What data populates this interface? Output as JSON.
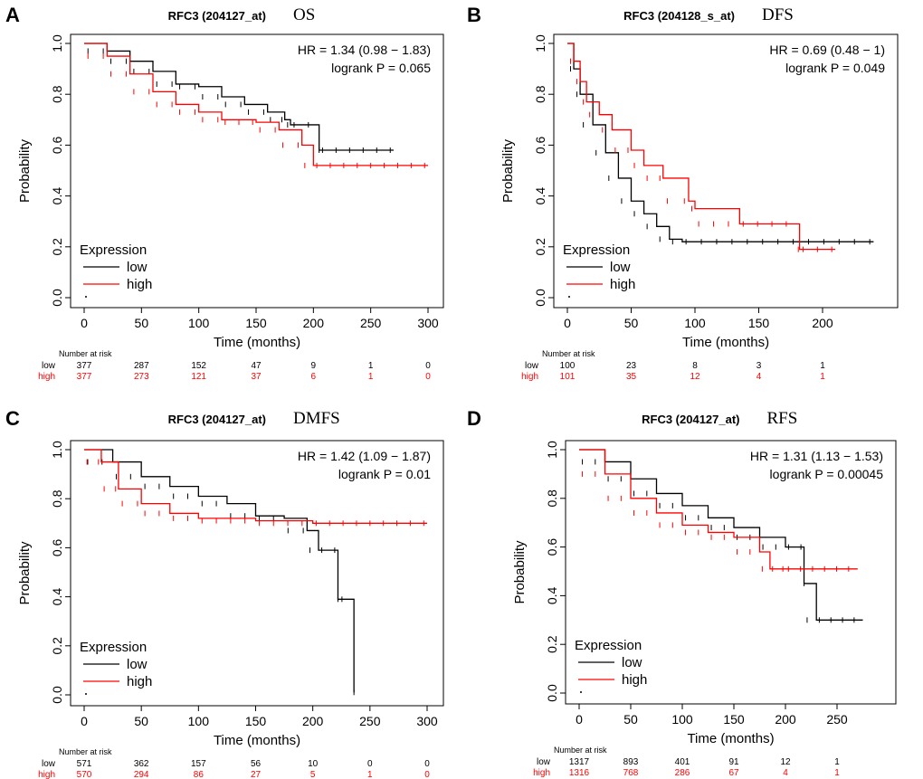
{
  "chart_data": [
    {
      "type": "line",
      "panel": "A",
      "gene": "RFC3 (204127_at)",
      "endpoint": "OS",
      "hr": "HR = 1.34 (0.98 − 1.83)",
      "p": "logrank P = 0.065",
      "xlabel": "Time (months)",
      "ylabel": "Probability",
      "xlim": [
        0,
        300
      ],
      "xticks": [
        0,
        50,
        100,
        150,
        200,
        250,
        300
      ],
      "ylim": [
        0,
        1
      ],
      "yticks": [
        "0.0",
        "0.2",
        "0.4",
        "0.6",
        "0.8",
        "1.0"
      ],
      "legend_title": "Expression",
      "legend_placement": "bottom-left",
      "series": [
        {
          "name": "low",
          "color": "#000000",
          "points": [
            [
              0,
              1
            ],
            [
              20,
              0.97
            ],
            [
              40,
              0.93
            ],
            [
              60,
              0.89
            ],
            [
              80,
              0.84
            ],
            [
              100,
              0.83
            ],
            [
              120,
              0.79
            ],
            [
              140,
              0.76
            ],
            [
              160,
              0.73
            ],
            [
              175,
              0.7
            ],
            [
              180,
              0.68
            ],
            [
              205,
              0.68
            ],
            [
              205,
              0.58
            ],
            [
              270,
              0.58
            ]
          ]
        },
        {
          "name": "high",
          "color": "#ff0000",
          "points": [
            [
              0,
              1
            ],
            [
              20,
              0.95
            ],
            [
              40,
              0.88
            ],
            [
              60,
              0.81
            ],
            [
              80,
              0.76
            ],
            [
              100,
              0.73
            ],
            [
              120,
              0.7
            ],
            [
              150,
              0.69
            ],
            [
              170,
              0.66
            ],
            [
              190,
              0.6
            ],
            [
              200,
              0.52
            ],
            [
              300,
              0.52
            ]
          ]
        }
      ],
      "risk_title": "Number at risk",
      "risk": {
        "low": [
          "377",
          "287",
          "152",
          "47",
          "9",
          "1",
          "0"
        ],
        "high": [
          "377",
          "273",
          "121",
          "37",
          "6",
          "1",
          "0"
        ]
      }
    },
    {
      "type": "line",
      "panel": "B",
      "gene": "RFC3 (204128_s_at)",
      "endpoint": "DFS",
      "hr": "HR = 0.69 (0.48 − 1)",
      "p": "logrank P = 0.049",
      "xlabel": "Time (months)",
      "ylabel": "Probability",
      "xlim": [
        0,
        250
      ],
      "xticks": [
        0,
        50,
        100,
        150,
        200
      ],
      "ylim": [
        0,
        1
      ],
      "yticks": [
        "0.0",
        "0.2",
        "0.4",
        "0.6",
        "0.8",
        "1.0"
      ],
      "legend_title": "Expression",
      "legend_placement": "bottom-left",
      "series": [
        {
          "name": "low",
          "color": "#000000",
          "points": [
            [
              0,
              1
            ],
            [
              5,
              0.9
            ],
            [
              10,
              0.8
            ],
            [
              20,
              0.68
            ],
            [
              30,
              0.57
            ],
            [
              40,
              0.47
            ],
            [
              50,
              0.38
            ],
            [
              60,
              0.33
            ],
            [
              70,
              0.28
            ],
            [
              80,
              0.23
            ],
            [
              90,
              0.22
            ],
            [
              240,
              0.22
            ]
          ]
        },
        {
          "name": "high",
          "color": "#ff0000",
          "points": [
            [
              0,
              1
            ],
            [
              5,
              0.93
            ],
            [
              10,
              0.85
            ],
            [
              15,
              0.77
            ],
            [
              25,
              0.72
            ],
            [
              35,
              0.66
            ],
            [
              50,
              0.58
            ],
            [
              60,
              0.52
            ],
            [
              75,
              0.47
            ],
            [
              95,
              0.38
            ],
            [
              100,
              0.35
            ],
            [
              135,
              0.29
            ],
            [
              180,
              0.29
            ],
            [
              182,
              0.19
            ],
            [
              210,
              0.19
            ]
          ]
        }
      ],
      "risk_title": "Number at risk",
      "risk": {
        "low": [
          "100",
          "23",
          "8",
          "3",
          "1"
        ],
        "high": [
          "101",
          "35",
          "12",
          "4",
          "1"
        ]
      }
    },
    {
      "type": "line",
      "panel": "C",
      "gene": "RFC3 (204127_at)",
      "endpoint": "DMFS",
      "hr": "HR = 1.42 (1.09 − 1.87)",
      "p": "logrank P = 0.01",
      "xlabel": "Time (months)",
      "ylabel": "Probability",
      "xlim": [
        0,
        300
      ],
      "xticks": [
        0,
        50,
        100,
        150,
        200,
        250,
        300
      ],
      "ylim": [
        0,
        1
      ],
      "yticks": [
        "0.0",
        "0.2",
        "0.4",
        "0.6",
        "0.8",
        "1.0"
      ],
      "legend_title": "Expression",
      "legend_placement": "bottom-left",
      "series": [
        {
          "name": "low",
          "color": "#000000",
          "points": [
            [
              0,
              1
            ],
            [
              25,
              0.95
            ],
            [
              50,
              0.89
            ],
            [
              75,
              0.85
            ],
            [
              100,
              0.81
            ],
            [
              125,
              0.78
            ],
            [
              150,
              0.73
            ],
            [
              175,
              0.72
            ],
            [
              195,
              0.67
            ],
            [
              205,
              0.59
            ],
            [
              222,
              0.59
            ],
            [
              222,
              0.39
            ],
            [
              236,
              0.39
            ],
            [
              236,
              0.01
            ]
          ]
        },
        {
          "name": "high",
          "color": "#ff0000",
          "points": [
            [
              0,
              1
            ],
            [
              15,
              0.95
            ],
            [
              30,
              0.84
            ],
            [
              50,
              0.78
            ],
            [
              75,
              0.74
            ],
            [
              100,
              0.72
            ],
            [
              150,
              0.71
            ],
            [
              200,
              0.7
            ],
            [
              300,
              0.7
            ]
          ]
        }
      ],
      "risk_title": "Number at risk",
      "risk": {
        "low": [
          "571",
          "362",
          "157",
          "56",
          "10",
          "0",
          "0"
        ],
        "high": [
          "570",
          "294",
          "86",
          "27",
          "5",
          "1",
          "0"
        ]
      }
    },
    {
      "type": "line",
      "panel": "D",
      "gene": "RFC3 (204127_at)",
      "endpoint": "RFS",
      "hr": "HR = 1.31 (1.13 − 1.53)",
      "p": "logrank P = 0.00045",
      "xlabel": "Time (months)",
      "ylabel": "Probability",
      "xlim": [
        0,
        250
      ],
      "xticks": [
        0,
        50,
        100,
        150,
        200,
        250
      ],
      "ylim": [
        0,
        1
      ],
      "yticks": [
        "0.0",
        "0.2",
        "0.4",
        "0.6",
        "0.8",
        "1.0"
      ],
      "legend_title": "Expression",
      "legend_placement": "bottom-left",
      "series": [
        {
          "name": "low",
          "color": "#000000",
          "points": [
            [
              0,
              1
            ],
            [
              25,
              0.95
            ],
            [
              50,
              0.88
            ],
            [
              75,
              0.82
            ],
            [
              100,
              0.77
            ],
            [
              125,
              0.72
            ],
            [
              150,
              0.68
            ],
            [
              175,
              0.64
            ],
            [
              200,
              0.6
            ],
            [
              218,
              0.6
            ],
            [
              218,
              0.45
            ],
            [
              230,
              0.3
            ],
            [
              275,
              0.3
            ]
          ]
        },
        {
          "name": "high",
          "color": "#ff0000",
          "points": [
            [
              0,
              1
            ],
            [
              25,
              0.9
            ],
            [
              50,
              0.8
            ],
            [
              75,
              0.74
            ],
            [
              100,
              0.69
            ],
            [
              125,
              0.66
            ],
            [
              150,
              0.64
            ],
            [
              175,
              0.58
            ],
            [
              185,
              0.51
            ],
            [
              200,
              0.51
            ],
            [
              270,
              0.51
            ]
          ]
        }
      ],
      "risk_title": "Number at risk",
      "risk": {
        "low": [
          "1317",
          "893",
          "401",
          "91",
          "12",
          "1"
        ],
        "high": [
          "1316",
          "768",
          "286",
          "67",
          "4",
          "1"
        ]
      }
    }
  ]
}
